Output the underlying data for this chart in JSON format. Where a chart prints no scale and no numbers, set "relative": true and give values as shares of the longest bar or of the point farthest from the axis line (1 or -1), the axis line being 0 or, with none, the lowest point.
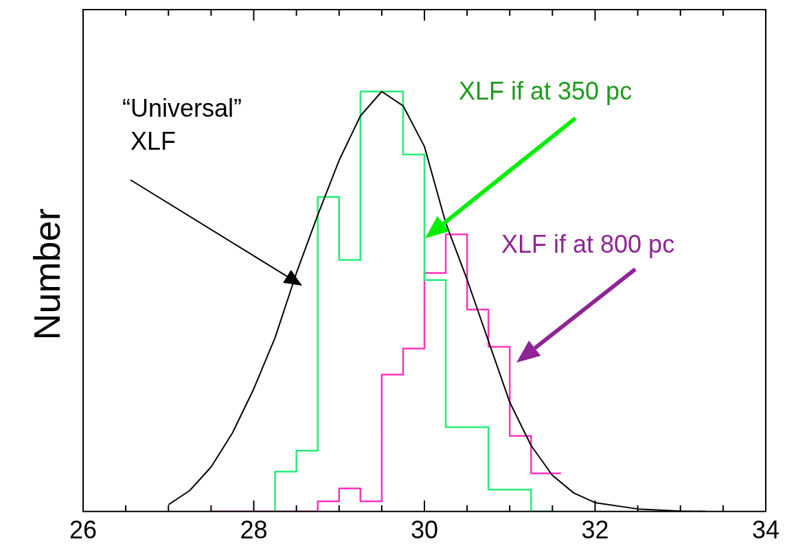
{
  "chart_data": {
    "type": "histogram",
    "ylabel": "Number",
    "relative": true,
    "xlim": [
      26,
      34
    ],
    "xticks": [
      26,
      {
        "value": 26.5,
        "label": null
      },
      {
        "value": 27,
        "label": null
      },
      {
        "value": 27.5,
        "label": null
      },
      28,
      {
        "value": 28.5,
        "label": null
      },
      {
        "value": 29,
        "label": null
      },
      {
        "value": 29.5,
        "label": null
      },
      30,
      {
        "value": 30.5,
        "label": null
      },
      {
        "value": 31,
        "label": null
      },
      {
        "value": 31.5,
        "label": null
      },
      32,
      {
        "value": 32.5,
        "label": null
      },
      {
        "value": 33,
        "label": null
      },
      {
        "value": 33.5,
        "label": null
      },
      34
    ],
    "grid": false,
    "legend": false,
    "tick_labels": "x",
    "series": [
      {
        "type": "line",
        "color": "#000000",
        "x": [
          27,
          27.25,
          27.5,
          27.75,
          28,
          28.25,
          28.5,
          28.75,
          29,
          29.25,
          29.5,
          29.75,
          30,
          30.25,
          30.5,
          30.75,
          31,
          31.25,
          31.5,
          31.75,
          32,
          32.5,
          33,
          33.3
        ],
        "values": [
          0.016,
          0.05,
          0.106,
          0.187,
          0.292,
          0.414,
          0.568,
          0.706,
          0.836,
          0.942,
          1.0,
          0.966,
          0.869,
          0.687,
          0.552,
          0.406,
          0.26,
          0.157,
          0.086,
          0.044,
          0.021,
          0.006,
          0.001,
          0
        ]
      },
      {
        "type": "histogram",
        "color": "#22ee77",
        "bins": [
          28.25,
          28.5,
          28.75,
          29,
          29.25,
          29.5,
          29.75,
          30,
          30.25,
          30.5,
          30.75,
          31,
          31.25,
          31.5
        ],
        "values": [
          0.095,
          0.145,
          0.749,
          0.599,
          1.0,
          1.0,
          0.85,
          0.551,
          0.201,
          0.201,
          0.052,
          0.052,
          0
        ]
      },
      {
        "type": "histogram",
        "color": "#ff33bb",
        "bins": [
          27.5,
          28.75,
          29,
          29.25,
          29.5,
          29.75,
          30,
          30.25,
          30.5,
          30.75,
          31,
          31.25,
          31.6
        ],
        "values": [
          0,
          0.024,
          0.055,
          0.024,
          0.326,
          0.388,
          0.568,
          0.66,
          0.481,
          0.392,
          0.18,
          0.091
        ]
      }
    ],
    "annotations": [
      "“Universal” XLF",
      "XLF if at 350 pc",
      "XLF if at 800 pc"
    ]
  }
}
